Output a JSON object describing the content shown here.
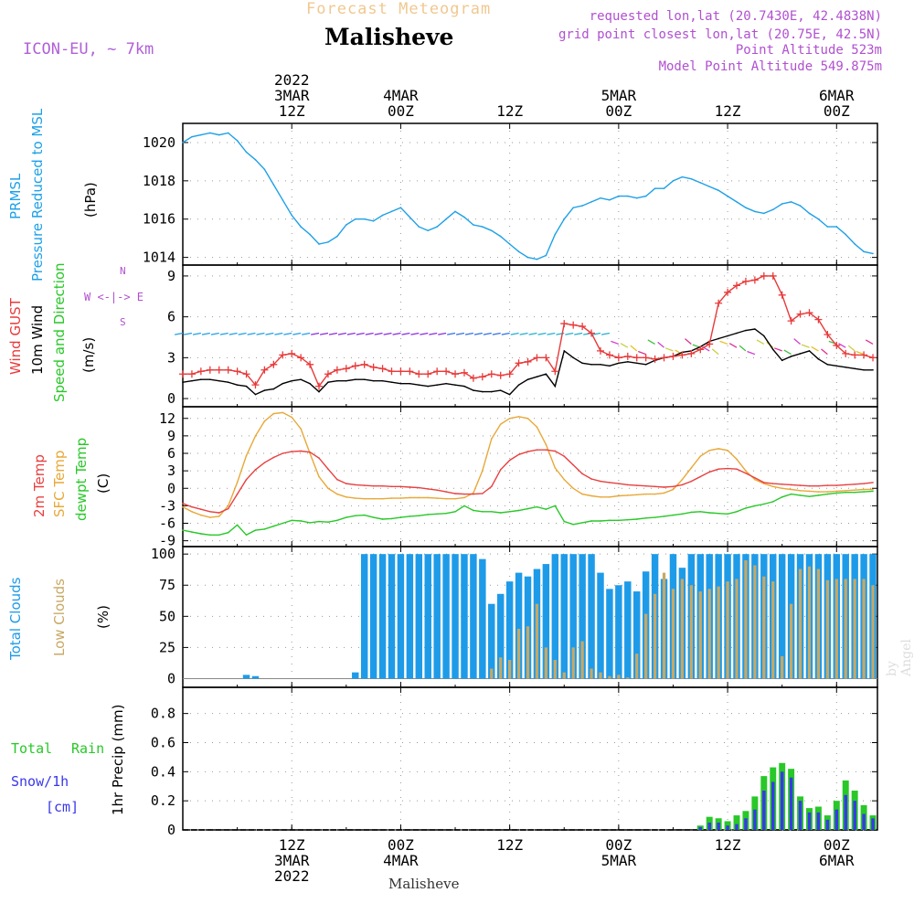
{
  "header": {
    "supertitle": "Forecast Meteogram",
    "station": "Malisheve",
    "model": "ICON-EU, ~ 7km",
    "requested": "requested lon,lat (20.7430E, 42.4838N)",
    "grid_point": "grid point closest lon,lat (20.75E, 42.5N)",
    "point_altitude": "Point Altitude 523m",
    "model_altitude": "Model Point Altitude 549.875m"
  },
  "footer_station": "Malisheve",
  "watermark": "by Angel",
  "time_axis": {
    "year_label": "2022",
    "ticks": [
      {
        "h": 12,
        "hour": "12Z",
        "date": "3MAR",
        "year": "2022"
      },
      {
        "h": 24,
        "hour": "00Z",
        "date": "4MAR"
      },
      {
        "h": 36,
        "hour": "12Z",
        "date": ""
      },
      {
        "h": 48,
        "hour": "00Z",
        "date": "5MAR"
      },
      {
        "h": 60,
        "hour": "12Z",
        "date": ""
      },
      {
        "h": 72,
        "hour": "00Z",
        "date": "6MAR"
      }
    ]
  },
  "panel_labels": {
    "pressure": {
      "l1": "PRMSL",
      "l2": "Pressure Reduced to MSL",
      "unit": "(hPa)"
    },
    "wind": {
      "gust": "Wind GUST",
      "w10": "10m Wind",
      "dir": "Speed and Direction",
      "unit": "(m/s)",
      "compass_w": "W <-|-> E",
      "compass_n": "N",
      "compass_s": "S"
    },
    "temp": {
      "t2m": "2m Temp",
      "sfc": "SFC Temp",
      "dew": "dewpt Temp",
      "unit": "(C)"
    },
    "clouds": {
      "total": "Total Clouds",
      "low": "Low Clouds",
      "unit": "(%)"
    },
    "precip": {
      "total": "Total",
      "rain": "Rain",
      "snow": "Snow/1h",
      "snow_unit": "[cm]",
      "title": "1hr Precip (mm)"
    }
  },
  "colors": {
    "pressure": "#1ea0e8",
    "gust": "#e83a3a",
    "wind10": "#000000",
    "t2m": "#e84040",
    "sfc": "#e8a838",
    "dew": "#28c828",
    "total_clouds": "#1e9be8",
    "low_clouds": "#c8a864",
    "rain": "#28c828",
    "snow": "#3838e8",
    "label_pressure": "#1ea0e8",
    "label_gust": "#e83a3a",
    "label_dir": "#28c828",
    "label_compass": "#b050d0"
  },
  "chart_data": [
    {
      "type": "line",
      "name": "pressure",
      "x_hours": [
        0,
        1,
        2,
        3,
        4,
        5,
        6,
        7,
        8,
        9,
        10,
        11,
        12,
        13,
        14,
        15,
        16,
        17,
        18,
        19,
        20,
        21,
        22,
        23,
        24,
        25,
        26,
        27,
        28,
        29,
        30,
        31,
        32,
        33,
        34,
        35,
        36,
        37,
        38,
        39,
        40,
        41,
        42,
        43,
        44,
        45,
        46,
        47,
        48,
        49,
        50,
        51,
        52,
        53,
        54,
        55,
        56,
        57,
        58,
        59,
        60,
        61,
        62,
        63,
        64,
        65,
        66,
        67,
        68,
        69,
        70,
        71,
        72,
        73,
        74,
        75,
        76
      ],
      "values": [
        1020.0,
        1020.3,
        1020.4,
        1020.5,
        1020.4,
        1020.5,
        1020.1,
        1019.5,
        1019.1,
        1018.6,
        1017.8,
        1017.0,
        1016.2,
        1015.6,
        1015.2,
        1014.7,
        1014.8,
        1015.1,
        1015.7,
        1016.0,
        1016.0,
        1015.9,
        1016.2,
        1016.4,
        1016.6,
        1016.1,
        1015.6,
        1015.4,
        1015.6,
        1016.0,
        1016.4,
        1016.1,
        1015.7,
        1015.6,
        1015.4,
        1015.1,
        1014.7,
        1014.3,
        1014.0,
        1013.9,
        1014.1,
        1015.2,
        1016.0,
        1016.6,
        1016.7,
        1016.9,
        1017.1,
        1017.0,
        1017.2,
        1017.2,
        1017.1,
        1017.2,
        1017.6,
        1017.6,
        1018.0,
        1018.2,
        1018.1,
        1017.9,
        1017.7,
        1017.5,
        1017.2,
        1016.9,
        1016.6,
        1016.4,
        1016.3,
        1016.5,
        1016.8,
        1016.9,
        1016.7,
        1016.3,
        1016.0,
        1015.6,
        1015.6,
        1015.2,
        1014.7,
        1014.3,
        1014.2
      ],
      "ylim": [
        1013.6,
        1021.0
      ],
      "yticks": [
        1014,
        1016,
        1018,
        1020
      ]
    },
    {
      "type": "line",
      "name": "wind",
      "x_hours": [
        0,
        1,
        2,
        3,
        4,
        5,
        6,
        7,
        8,
        9,
        10,
        11,
        12,
        13,
        14,
        15,
        16,
        17,
        18,
        19,
        20,
        21,
        22,
        23,
        24,
        25,
        26,
        27,
        28,
        29,
        30,
        31,
        32,
        33,
        34,
        35,
        36,
        37,
        38,
        39,
        40,
        41,
        42,
        43,
        44,
        45,
        46,
        47,
        48,
        49,
        50,
        51,
        52,
        53,
        54,
        55,
        56,
        57,
        58,
        59,
        60,
        61,
        62,
        63,
        64,
        65,
        66,
        67,
        68,
        69,
        70,
        71,
        72,
        73,
        74,
        75,
        76
      ],
      "gust": [
        1.8,
        1.8,
        2.0,
        2.1,
        2.1,
        2.1,
        2.0,
        1.8,
        1.0,
        2.1,
        2.5,
        3.2,
        3.3,
        3.0,
        2.5,
        0.9,
        1.8,
        2.1,
        2.2,
        2.4,
        2.5,
        2.3,
        2.2,
        2.0,
        2.0,
        2.0,
        1.8,
        1.8,
        2.0,
        2.0,
        1.8,
        1.9,
        1.5,
        1.6,
        1.8,
        1.7,
        1.8,
        2.6,
        2.7,
        3.0,
        3.0,
        2.0,
        5.5,
        5.4,
        5.3,
        4.8,
        3.5,
        3.2,
        3.0,
        3.1,
        3.0,
        3.0,
        2.9,
        3.0,
        3.1,
        3.2,
        3.3,
        3.6,
        4.0,
        7.0,
        7.8,
        8.3,
        8.6,
        8.7,
        9.0,
        9.0,
        7.6,
        5.7,
        6.2,
        6.3,
        5.8,
        4.7,
        3.9,
        3.3,
        3.2,
        3.2,
        3.0
      ],
      "wind10": [
        1.2,
        1.3,
        1.4,
        1.4,
        1.3,
        1.2,
        1.0,
        0.9,
        0.3,
        0.6,
        0.7,
        1.1,
        1.3,
        1.4,
        1.1,
        0.5,
        1.2,
        1.3,
        1.3,
        1.4,
        1.4,
        1.3,
        1.3,
        1.2,
        1.1,
        1.1,
        1.0,
        0.9,
        1.0,
        1.1,
        1.0,
        0.9,
        0.6,
        0.5,
        0.5,
        0.6,
        0.3,
        1.0,
        1.4,
        1.6,
        1.8,
        0.9,
        3.5,
        3.0,
        2.6,
        2.5,
        2.5,
        2.4,
        2.6,
        2.7,
        2.6,
        2.5,
        2.8,
        3.0,
        3.1,
        3.4,
        3.5,
        3.8,
        4.2,
        4.4,
        4.6,
        4.8,
        5.0,
        5.1,
        4.6,
        3.6,
        2.8,
        3.1,
        3.3,
        3.5,
        2.9,
        2.5,
        2.4,
        2.3,
        2.2,
        2.1,
        2.1
      ],
      "ylim": [
        -0.6,
        9.8
      ],
      "yticks": [
        0,
        3,
        6,
        9
      ]
    },
    {
      "type": "line",
      "name": "temperature",
      "x_hours": [
        0,
        1,
        2,
        3,
        4,
        5,
        6,
        7,
        8,
        9,
        10,
        11,
        12,
        13,
        14,
        15,
        16,
        17,
        18,
        19,
        20,
        21,
        22,
        23,
        24,
        25,
        26,
        27,
        28,
        29,
        30,
        31,
        32,
        33,
        34,
        35,
        36,
        37,
        38,
        39,
        40,
        41,
        42,
        43,
        44,
        45,
        46,
        47,
        48,
        49,
        50,
        51,
        52,
        53,
        54,
        55,
        56,
        57,
        58,
        59,
        60,
        61,
        62,
        63,
        64,
        65,
        66,
        67,
        68,
        69,
        70,
        71,
        72,
        73,
        74,
        75,
        76
      ],
      "t2m": [
        -2.6,
        -3.2,
        -3.6,
        -4.0,
        -4.2,
        -3.5,
        -1.0,
        1.5,
        3.2,
        4.4,
        5.3,
        6.0,
        6.3,
        6.4,
        6.2,
        5.2,
        3.3,
        1.5,
        0.8,
        0.6,
        0.5,
        0.4,
        0.4,
        0.3,
        0.3,
        0.2,
        0.1,
        -0.1,
        -0.3,
        -0.6,
        -0.9,
        -1.0,
        -1.0,
        -0.9,
        0.3,
        3.2,
        4.8,
        5.8,
        6.3,
        6.6,
        6.6,
        6.4,
        5.5,
        4.0,
        2.5,
        1.6,
        1.2,
        1.0,
        0.8,
        0.6,
        0.5,
        0.4,
        0.3,
        0.2,
        0.3,
        0.6,
        1.2,
        2.0,
        2.8,
        3.3,
        3.4,
        3.3,
        2.6,
        1.8,
        1.0,
        0.8,
        0.7,
        0.6,
        0.5,
        0.4,
        0.4,
        0.5,
        0.5,
        0.6,
        0.7,
        0.8,
        1.0
      ],
      "sfc": [
        -3.2,
        -4.0,
        -4.6,
        -5.0,
        -4.8,
        -3.0,
        1.0,
        5.6,
        9.0,
        11.5,
        12.8,
        13.0,
        12.2,
        10.2,
        6.0,
        2.0,
        0.0,
        -1.0,
        -1.5,
        -1.7,
        -1.8,
        -1.8,
        -1.8,
        -1.7,
        -1.7,
        -1.6,
        -1.6,
        -1.6,
        -1.7,
        -1.8,
        -1.8,
        -1.6,
        -0.8,
        3.0,
        8.5,
        11.0,
        12.0,
        12.3,
        12.0,
        10.5,
        7.5,
        3.5,
        1.5,
        0.0,
        -1.0,
        -1.3,
        -1.5,
        -1.5,
        -1.3,
        -1.2,
        -1.1,
        -1.0,
        -1.0,
        -0.8,
        -0.2,
        1.5,
        3.5,
        5.5,
        6.5,
        6.8,
        6.5,
        5.0,
        3.0,
        1.5,
        0.8,
        0.3,
        0.0,
        -0.2,
        -0.4,
        -0.5,
        -0.6,
        -0.6,
        -0.5,
        -0.4,
        -0.3,
        -0.2,
        -0.2
      ],
      "dew": [
        -7.2,
        -7.5,
        -7.8,
        -8.0,
        -8.0,
        -7.6,
        -6.3,
        -8.0,
        -7.2,
        -7.0,
        -6.5,
        -6.0,
        -5.5,
        -5.6,
        -5.9,
        -5.7,
        -5.8,
        -5.5,
        -5.0,
        -4.7,
        -4.6,
        -5.0,
        -5.3,
        -5.2,
        -5.0,
        -4.8,
        -4.7,
        -4.5,
        -4.4,
        -4.3,
        -4.0,
        -3.0,
        -3.8,
        -4.0,
        -4.0,
        -4.2,
        -4.0,
        -3.8,
        -3.5,
        -3.2,
        -3.6,
        -3.0,
        -5.7,
        -6.2,
        -5.9,
        -5.6,
        -5.6,
        -5.5,
        -5.5,
        -5.4,
        -5.3,
        -5.1,
        -5.0,
        -4.8,
        -4.6,
        -4.4,
        -4.1,
        -4.0,
        -4.2,
        -4.3,
        -4.4,
        -4.0,
        -3.4,
        -3.0,
        -2.7,
        -2.3,
        -1.5,
        -1.0,
        -1.2,
        -1.4,
        -1.2,
        -1.0,
        -0.8,
        -0.7,
        -0.7,
        -0.6,
        -0.5
      ],
      "ylim": [
        -10.0,
        14.0
      ],
      "yticks": [
        -9,
        -6,
        -3,
        0,
        3,
        6,
        9,
        12
      ]
    },
    {
      "type": "bar",
      "name": "clouds",
      "x_hours": [
        0,
        1,
        2,
        3,
        4,
        5,
        6,
        7,
        8,
        9,
        10,
        11,
        12,
        13,
        14,
        15,
        16,
        17,
        18,
        19,
        20,
        21,
        22,
        23,
        24,
        25,
        26,
        27,
        28,
        29,
        30,
        31,
        32,
        33,
        34,
        35,
        36,
        37,
        38,
        39,
        40,
        41,
        42,
        43,
        44,
        45,
        46,
        47,
        48,
        49,
        50,
        51,
        52,
        53,
        54,
        55,
        56,
        57,
        58,
        59,
        60,
        61,
        62,
        63,
        64,
        65,
        66,
        67,
        68,
        69,
        70,
        71,
        72,
        73,
        74,
        75,
        76
      ],
      "total": [
        0,
        0,
        0,
        0,
        0,
        0,
        0,
        3,
        2,
        0,
        0,
        0,
        0,
        0,
        0,
        0,
        0,
        0,
        0,
        5,
        100,
        100,
        100,
        100,
        100,
        100,
        100,
        100,
        100,
        100,
        100,
        100,
        100,
        96,
        60,
        68,
        78,
        85,
        82,
        88,
        92,
        100,
        100,
        100,
        100,
        100,
        85,
        72,
        75,
        78,
        70,
        86,
        100,
        80,
        100,
        89,
        100,
        100,
        100,
        100,
        100,
        100,
        100,
        100,
        100,
        100,
        100,
        100,
        100,
        100,
        100,
        100,
        100,
        100,
        100,
        100,
        100
      ],
      "low": [
        0,
        0,
        0,
        0,
        0,
        0,
        0,
        0,
        0,
        0,
        0,
        0,
        0,
        0,
        0,
        0,
        0,
        0,
        0,
        0,
        0,
        0,
        0,
        0,
        0,
        0,
        0,
        0,
        0,
        0,
        0,
        0,
        0,
        0,
        8,
        17,
        15,
        40,
        42,
        60,
        25,
        15,
        5,
        25,
        30,
        8,
        5,
        2,
        3,
        1,
        20,
        52,
        68,
        85,
        72,
        80,
        75,
        70,
        72,
        74,
        78,
        80,
        95,
        91,
        82,
        78,
        18,
        60,
        88,
        90,
        88,
        79,
        80,
        80,
        80,
        80,
        75
      ],
      "ylim": [
        -7,
        106
      ],
      "yticks": [
        0,
        25,
        50,
        75,
        100
      ]
    },
    {
      "type": "bar",
      "name": "precip",
      "x_hours": [
        57,
        58,
        59,
        60,
        61,
        62,
        63,
        64,
        65,
        66,
        67,
        68,
        69,
        70,
        71,
        72,
        73,
        74,
        75,
        76
      ],
      "total": [
        0.03,
        0.09,
        0.08,
        0.06,
        0.1,
        0.13,
        0.23,
        0.37,
        0.43,
        0.46,
        0.42,
        0.23,
        0.15,
        0.16,
        0.1,
        0.2,
        0.34,
        0.27,
        0.17,
        0.1
      ],
      "snow": [
        0.02,
        0.05,
        0.05,
        0.03,
        0.04,
        0.08,
        0.14,
        0.27,
        0.33,
        0.4,
        0.36,
        0.2,
        0.12,
        0.12,
        0.07,
        0.14,
        0.24,
        0.2,
        0.11,
        0.08
      ],
      "ylim": [
        0,
        0.98
      ],
      "yticks": [
        0,
        0.2,
        0.4,
        0.6,
        0.8
      ],
      "ytick_labels": [
        "0",
        "0.2",
        "0.4",
        "0.6",
        "0.8"
      ]
    }
  ]
}
